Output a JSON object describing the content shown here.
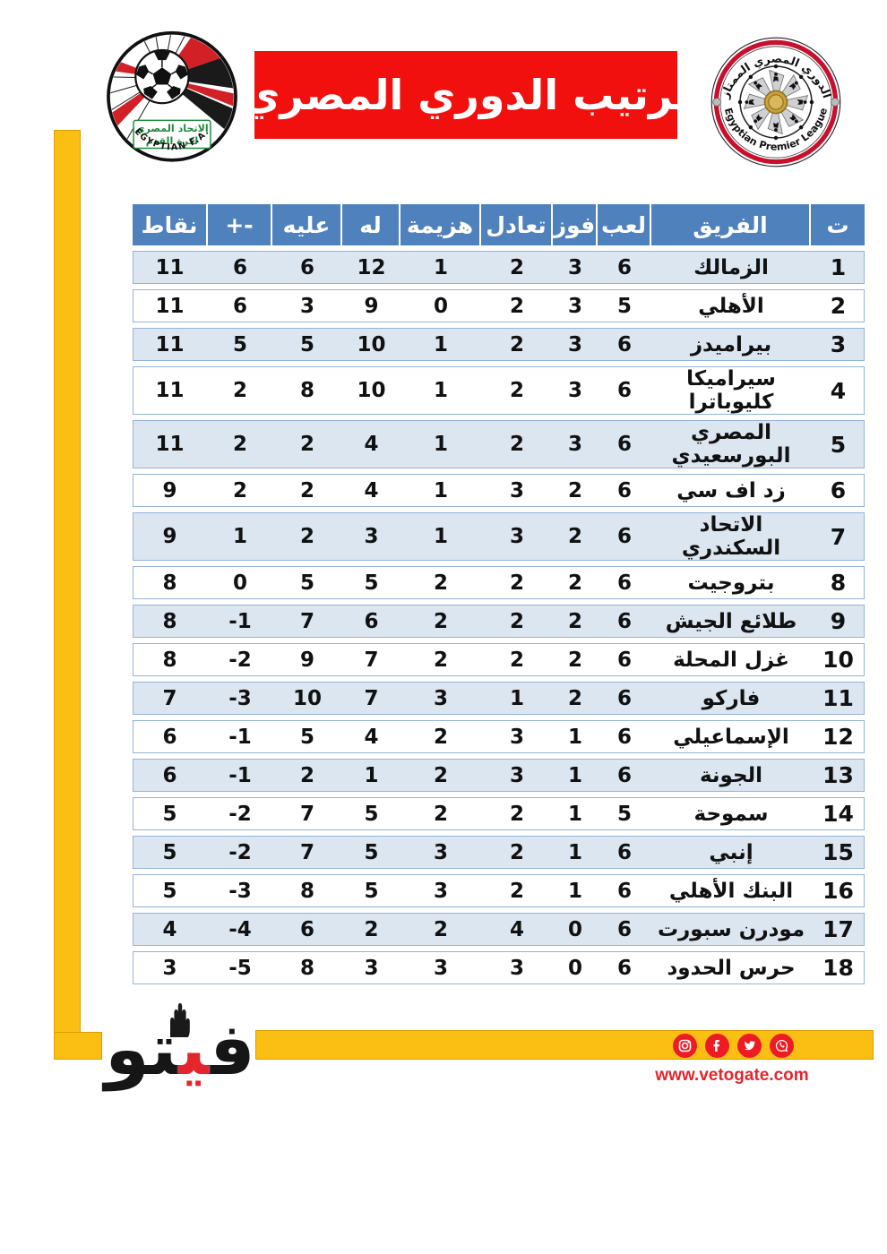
{
  "header": {
    "title": "ترتيب الدوري المصري",
    "fa_logo": {
      "arabic_line1": "الاتحاد المصري",
      "arabic_line2": "لكرة القدم",
      "caption": "EGYPTIAN F.A."
    },
    "epl_logo": {
      "arabic": "الدوري المصري الممتاز",
      "english": "Egyptian Premier League"
    }
  },
  "chart_data": {
    "type": "table",
    "title": "ترتيب الدوري المصري",
    "columns": [
      {
        "key": "rank",
        "label": "ت"
      },
      {
        "key": "team",
        "label": "الفريق"
      },
      {
        "key": "played",
        "label": "لعب"
      },
      {
        "key": "won",
        "label": "فوز"
      },
      {
        "key": "drawn",
        "label": "تعادل"
      },
      {
        "key": "lost",
        "label": "هزيمة"
      },
      {
        "key": "gf",
        "label": "له"
      },
      {
        "key": "ga",
        "label": "عليه"
      },
      {
        "key": "gd",
        "label": "+-"
      },
      {
        "key": "points",
        "label": "نقاط"
      }
    ],
    "rows": [
      {
        "rank": 1,
        "team": "الزمالك",
        "played": 6,
        "won": 3,
        "drawn": 2,
        "lost": 1,
        "gf": 12,
        "ga": 6,
        "gd": 6,
        "points": 11
      },
      {
        "rank": 2,
        "team": "الأهلي",
        "played": 5,
        "won": 3,
        "drawn": 2,
        "lost": 0,
        "gf": 9,
        "ga": 3,
        "gd": 6,
        "points": 11
      },
      {
        "rank": 3,
        "team": "بيراميدز",
        "played": 6,
        "won": 3,
        "drawn": 2,
        "lost": 1,
        "gf": 10,
        "ga": 5,
        "gd": 5,
        "points": 11
      },
      {
        "rank": 4,
        "team": "سيراميكا كليوباترا",
        "played": 6,
        "won": 3,
        "drawn": 2,
        "lost": 1,
        "gf": 10,
        "ga": 8,
        "gd": 2,
        "points": 11
      },
      {
        "rank": 5,
        "team": "المصري البورسعيدي",
        "played": 6,
        "won": 3,
        "drawn": 2,
        "lost": 1,
        "gf": 4,
        "ga": 2,
        "gd": 2,
        "points": 11
      },
      {
        "rank": 6,
        "team": "زد اف سي",
        "played": 6,
        "won": 2,
        "drawn": 3,
        "lost": 1,
        "gf": 4,
        "ga": 2,
        "gd": 2,
        "points": 9
      },
      {
        "rank": 7,
        "team": "الاتحاد السكندري",
        "played": 6,
        "won": 2,
        "drawn": 3,
        "lost": 1,
        "gf": 3,
        "ga": 2,
        "gd": 1,
        "points": 9
      },
      {
        "rank": 8,
        "team": "بتروجيت",
        "played": 6,
        "won": 2,
        "drawn": 2,
        "lost": 2,
        "gf": 5,
        "ga": 5,
        "gd": 0,
        "points": 8
      },
      {
        "rank": 9,
        "team": "طلائع الجيش",
        "played": 6,
        "won": 2,
        "drawn": 2,
        "lost": 2,
        "gf": 6,
        "ga": 7,
        "gd": -1,
        "points": 8
      },
      {
        "rank": 10,
        "team": "غزل المحلة",
        "played": 6,
        "won": 2,
        "drawn": 2,
        "lost": 2,
        "gf": 7,
        "ga": 9,
        "gd": -2,
        "points": 8
      },
      {
        "rank": 11,
        "team": "فاركو",
        "played": 6,
        "won": 2,
        "drawn": 1,
        "lost": 3,
        "gf": 7,
        "ga": 10,
        "gd": -3,
        "points": 7
      },
      {
        "rank": 12,
        "team": "الإسماعيلي",
        "played": 6,
        "won": 1,
        "drawn": 3,
        "lost": 2,
        "gf": 4,
        "ga": 5,
        "gd": -1,
        "points": 6
      },
      {
        "rank": 13,
        "team": "الجونة",
        "played": 6,
        "won": 1,
        "drawn": 3,
        "lost": 2,
        "gf": 1,
        "ga": 2,
        "gd": -1,
        "points": 6
      },
      {
        "rank": 14,
        "team": "سموحة",
        "played": 5,
        "won": 1,
        "drawn": 2,
        "lost": 2,
        "gf": 5,
        "ga": 7,
        "gd": -2,
        "points": 5
      },
      {
        "rank": 15,
        "team": "إنبي",
        "played": 6,
        "won": 1,
        "drawn": 2,
        "lost": 3,
        "gf": 5,
        "ga": 7,
        "gd": -2,
        "points": 5
      },
      {
        "rank": 16,
        "team": "البنك الأهلي",
        "played": 6,
        "won": 1,
        "drawn": 2,
        "lost": 3,
        "gf": 5,
        "ga": 8,
        "gd": -3,
        "points": 5
      },
      {
        "rank": 17,
        "team": "مودرن سبورت",
        "played": 6,
        "won": 0,
        "drawn": 4,
        "lost": 2,
        "gf": 2,
        "ga": 6,
        "gd": -4,
        "points": 4
      },
      {
        "rank": 18,
        "team": "حرس الحدود",
        "played": 6,
        "won": 0,
        "drawn": 3,
        "lost": 3,
        "gf": 3,
        "ga": 8,
        "gd": -5,
        "points": 3
      }
    ]
  },
  "footer": {
    "brand": {
      "name": "فيتو",
      "glyph_fa": "ﻓ",
      "glyph_ya": "ﻴ",
      "glyph_taw": "ﺘﻮ"
    },
    "website": "www.vetogate.com",
    "social_icons": [
      "instagram",
      "facebook",
      "twitter",
      "whatsapp"
    ]
  },
  "colors": {
    "banner_red": "#F2100E",
    "header_blue": "#4F81BD",
    "row_alt_blue": "#DCE6F1",
    "row_border_blue": "#95B3D7",
    "accent_yellow": "#FBBF13",
    "yellow_border": "#D99F05",
    "brand_red": "#E4262C",
    "social_red": "#ED1C24",
    "fa_green": "#1F8A3C"
  }
}
